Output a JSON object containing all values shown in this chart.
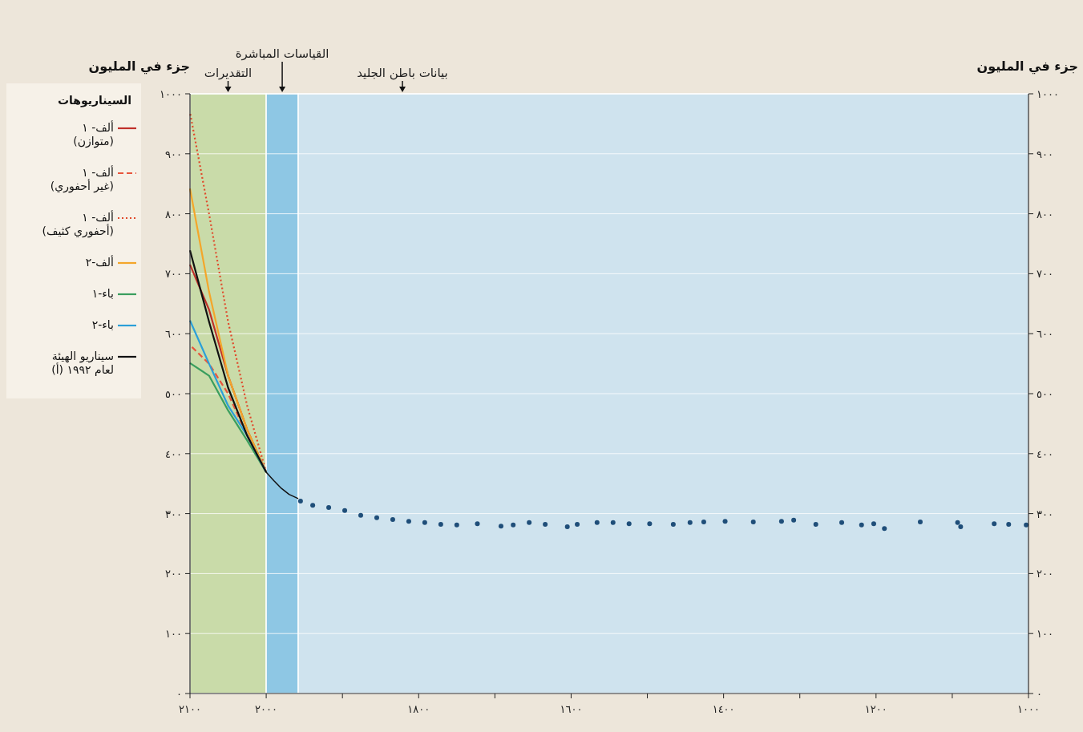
{
  "chart_data": {
    "type": "line",
    "ylabel": "جزء في المليون",
    "y2label": "جزء في المليون",
    "legend_title": "السيناريوهات",
    "xlim": [
      2100,
      1000
    ],
    "xticks": [
      {
        "value": 2100,
        "label": "٢١٠٠"
      },
      {
        "value": 2000,
        "label": "٢٠٠٠"
      },
      {
        "value": 1900,
        "label": null
      },
      {
        "value": 1800,
        "label": "١٨٠٠"
      },
      {
        "value": 1700,
        "label": null
      },
      {
        "value": 1600,
        "label": "١٦٠٠"
      },
      {
        "value": 1500,
        "label": null
      },
      {
        "value": 1400,
        "label": "١٤٠٠"
      },
      {
        "value": 1300,
        "label": null
      },
      {
        "value": 1200,
        "label": "١٢٠٠"
      },
      {
        "value": 1100,
        "label": null
      },
      {
        "value": 1000,
        "label": "١٠٠٠"
      }
    ],
    "ylim": [
      0,
      1000
    ],
    "yticks": [
      {
        "value": 0,
        "label": "٠"
      },
      {
        "value": 100,
        "label": "١٠٠"
      },
      {
        "value": 200,
        "label": "٢٠٠"
      },
      {
        "value": 300,
        "label": "٣٠٠"
      },
      {
        "value": 400,
        "label": "٤٠٠"
      },
      {
        "value": 500,
        "label": "٥٠٠"
      },
      {
        "value": 600,
        "label": "٦٠٠"
      },
      {
        "value": 700,
        "label": "٧٠٠"
      },
      {
        "value": 800,
        "label": "٨٠٠"
      },
      {
        "value": 900,
        "label": "٩٠٠"
      },
      {
        "value": 1000,
        "label": "١٠٠٠"
      }
    ],
    "y2lim": [
      0,
      1000
    ],
    "y2ticks": [
      {
        "value": 0,
        "label": "٠"
      },
      {
        "value": 100,
        "label": "١٠٠"
      },
      {
        "value": 200,
        "label": "٢٠٠"
      },
      {
        "value": 300,
        "label": "٣٠٠"
      },
      {
        "value": 400,
        "label": "٤٠٠"
      },
      {
        "value": 500,
        "label": "٥٠٠"
      },
      {
        "value": 600,
        "label": "٦٠٠"
      },
      {
        "value": 700,
        "label": "٧٠٠"
      },
      {
        "value": 800,
        "label": "٨٠٠"
      },
      {
        "value": 900,
        "label": "٩٠٠"
      },
      {
        "value": 1000,
        "label": "١٠٠٠"
      }
    ],
    "grid": "y",
    "legend": "left",
    "bands": [
      {
        "axis": "x",
        "from": 2100,
        "to": 2000,
        "label": "التقديرات",
        "color": "#c9dba9"
      },
      {
        "axis": "x",
        "from": 2000,
        "to": 1958,
        "label": "القياسات المباشرة",
        "color": "#8ec7e4"
      },
      {
        "axis": "x",
        "from": 1958,
        "to": 1000,
        "label": "بيانات باطن الجليد",
        "color": "#cfe3ee"
      }
    ],
    "series": [
      {
        "name": "ألف- ١\n(متوازن)",
        "color": "#c0302a",
        "x": [
          2000,
          2025,
          2050,
          2075,
          2100
        ],
        "values": [
          369,
          440,
          530,
          640,
          715
        ]
      },
      {
        "name": "ألف- ١\n(غير أحفوري)",
        "color": "#e8553d",
        "line_style": "dashed",
        "x": [
          2000,
          2025,
          2050,
          2075,
          2100
        ],
        "values": [
          369,
          430,
          500,
          550,
          581
        ]
      },
      {
        "name": "ألف- ١\n(أحفوري كثيف)",
        "color": "#e04a2c",
        "line_style": "dotted",
        "x": [
          2000,
          2025,
          2050,
          2075,
          2100
        ],
        "values": [
          369,
          480,
          620,
          800,
          969
        ]
      },
      {
        "name": "ألف-٢",
        "color": "#f4a62a",
        "x": [
          2000,
          2025,
          2050,
          2075,
          2100
        ],
        "values": [
          369,
          440,
          530,
          670,
          842
        ]
      },
      {
        "name": "باء-١",
        "color": "#3a9e5e",
        "x": [
          2000,
          2025,
          2050,
          2075,
          2100
        ],
        "values": [
          369,
          422,
          472,
          530,
          551
        ]
      },
      {
        "name": "باء-٢",
        "color": "#2b9fd8",
        "x": [
          2000,
          2025,
          2050,
          2075,
          2100
        ],
        "values": [
          369,
          430,
          480,
          550,
          622
        ]
      },
      {
        "name": "سيناريو الهيئة\n(أ) لعام ١٩٩٢",
        "color": "#111111",
        "x": [
          2000,
          2025,
          2050,
          2075,
          2100
        ],
        "values": [
          369,
          430,
          510,
          620,
          739
        ]
      },
      {
        "color": "#111111",
        "x": [
          1958,
          1970,
          1980,
          1990,
          2000
        ],
        "values": [
          325,
          332,
          342,
          355,
          369
        ]
      },
      {
        "type": "scatter",
        "marker": "circle",
        "color": "#1f4e79",
        "x": [
          1955,
          1939,
          1918,
          1897,
          1876,
          1855,
          1834,
          1813,
          1792,
          1771,
          1750,
          1723,
          1692,
          1676,
          1655,
          1634,
          1605,
          1592,
          1566,
          1545,
          1524,
          1497,
          1466,
          1444,
          1426,
          1398,
          1361,
          1324,
          1308,
          1279,
          1245,
          1219,
          1203,
          1189,
          1142,
          1093,
          1089,
          1045,
          1026,
          1003
        ],
        "values": [
          321,
          314,
          310,
          305,
          297,
          293,
          290,
          287,
          285,
          282,
          281,
          283,
          279,
          281,
          285,
          282,
          278,
          282,
          285,
          285,
          283,
          283,
          282,
          285,
          286,
          287,
          286,
          287,
          289,
          282,
          285,
          281,
          283,
          275,
          286,
          285,
          278,
          283,
          282,
          281
        ]
      }
    ]
  }
}
